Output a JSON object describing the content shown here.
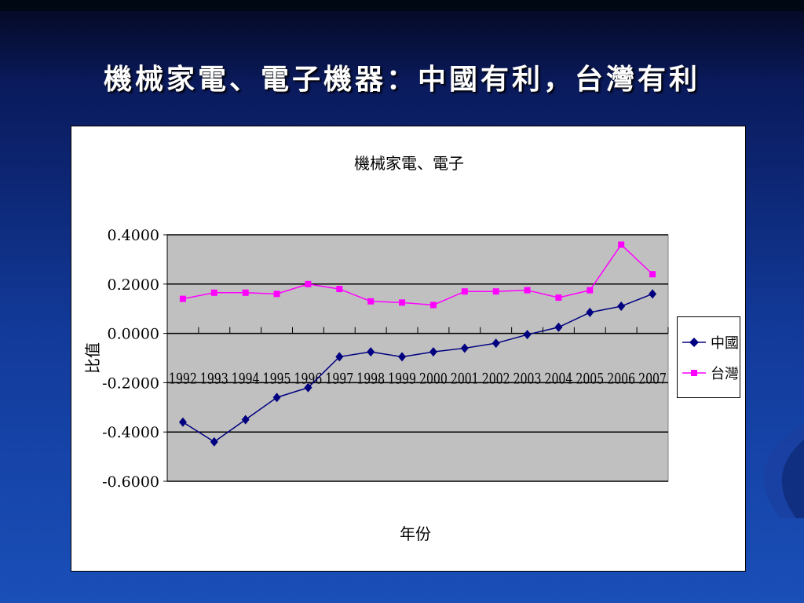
{
  "slide": {
    "title": "機械家電、電子機器：中國有利，台灣有利"
  },
  "chart_data": {
    "type": "line",
    "title": "機械家電、電子",
    "xlabel": "年份",
    "ylabel": "比值",
    "categories": [
      "1992",
      "1993",
      "1994",
      "1995",
      "1996",
      "1997",
      "1998",
      "1999",
      "2000",
      "2001",
      "2002",
      "2003",
      "2004",
      "2005",
      "2006",
      "2007"
    ],
    "yticks": [
      "0.4000",
      "0.2000",
      "0.0000",
      "-0.2000",
      "-0.4000",
      "-0.6000"
    ],
    "ylim": [
      -0.6,
      0.4
    ],
    "grid": true,
    "legend_position": "right",
    "plot_background": "#c0c0c0",
    "series": [
      {
        "name": "中國",
        "color": "#000080",
        "marker": "diamond",
        "values": [
          -0.36,
          -0.44,
          -0.35,
          -0.26,
          -0.22,
          -0.095,
          -0.075,
          -0.095,
          -0.075,
          -0.06,
          -0.04,
          -0.005,
          0.025,
          0.085,
          0.11,
          0.16
        ]
      },
      {
        "name": "台灣",
        "color": "#ff00ff",
        "marker": "square",
        "values": [
          0.14,
          0.165,
          0.165,
          0.16,
          0.2,
          0.18,
          0.13,
          0.125,
          0.115,
          0.17,
          0.17,
          0.175,
          0.145,
          0.175,
          0.36,
          0.24
        ]
      }
    ]
  }
}
